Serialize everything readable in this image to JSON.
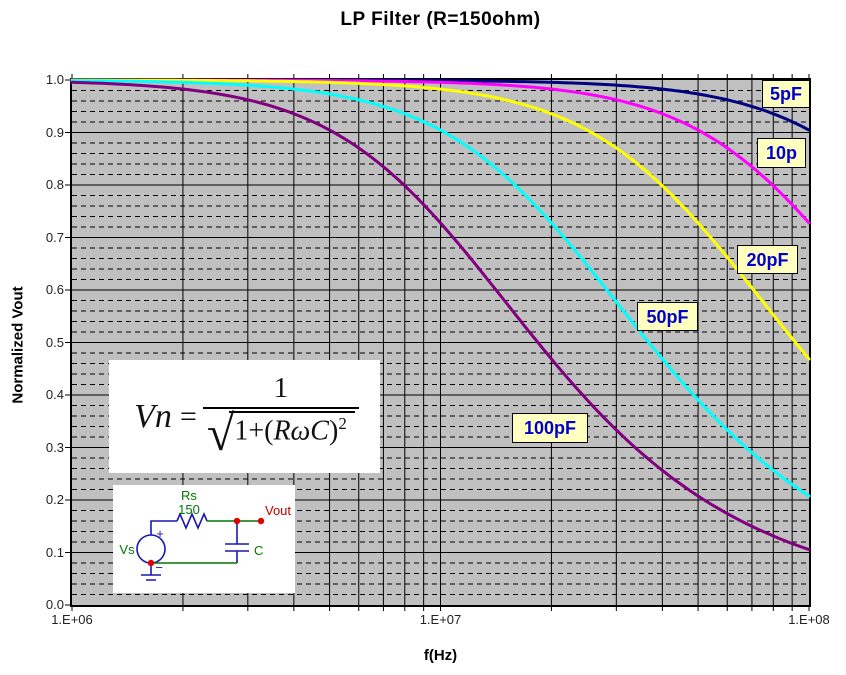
{
  "title": "LP Filter (R=150ohm)",
  "axes": {
    "x": {
      "label": "f(Hz)",
      "scale": "log",
      "tick_labels": [
        "1.E+06",
        "1.E+07",
        "1.E+08"
      ]
    },
    "y": {
      "label": "Normalized Vout",
      "tick_labels": [
        "1.0",
        "0.9",
        "0.8",
        "0.7",
        "0.6",
        "0.5",
        "0.4",
        "0.3",
        "0.2",
        "0.1",
        "0.0"
      ]
    }
  },
  "chart_data": {
    "type": "line",
    "title": "LP Filter (R=150ohm)",
    "xlabel": "f(Hz)",
    "ylabel": "Normalized Vout",
    "x_scale": "log",
    "xlim": [
      1000000,
      100000000
    ],
    "ylim": [
      0,
      1
    ],
    "y_major_step": 0.1,
    "y_minor_step": 0.02,
    "grid": "on",
    "plot_bg": "#C0C0C0",
    "formula": "Vn = 1/sqrt(1+(2*pi*f*R*C)^2)",
    "R_ohm": 150,
    "x_hz": [
      1000000,
      1258925,
      1584893,
      1995262,
      2511886,
      3162278,
      3981072,
      5011872,
      6309573,
      7943282,
      10000000,
      12589254,
      15848932,
      19952623,
      25118864,
      31622777,
      39810717,
      50118723,
      63095734,
      79432823,
      100000000
    ],
    "series": [
      {
        "name": "5pF",
        "label": "5pF",
        "C_farad": 5e-12,
        "color": "#000080",
        "values": [
          1.0,
          1.0,
          1.0,
          1.0,
          0.9999,
          0.9999,
          0.9998,
          0.9997,
          0.9996,
          0.9993,
          0.9989,
          0.9982,
          0.9972,
          0.9956,
          0.9931,
          0.989,
          0.9828,
          0.9732,
          0.9585,
          0.9365,
          0.9046
        ]
      },
      {
        "name": "10pF",
        "label": "10p",
        "C_farad": 1e-11,
        "color": "#FF00FF",
        "values": [
          1.0,
          0.9999,
          0.9999,
          0.9998,
          0.9997,
          0.9996,
          0.9993,
          0.9989,
          0.9982,
          0.9972,
          0.9956,
          0.993,
          0.989,
          0.9827,
          0.9731,
          0.9583,
          0.9362,
          0.9042,
          0.8595,
          0.8005,
          0.7277
        ]
      },
      {
        "name": "20pF",
        "label": "20pF",
        "C_farad": 2e-11,
        "color": "#FFFF00",
        "values": [
          0.9998,
          0.9997,
          0.9996,
          0.9993,
          0.9989,
          0.9982,
          0.9972,
          0.9956,
          0.993,
          0.9889,
          0.9826,
          0.9729,
          0.9581,
          0.936,
          0.9038,
          0.8589,
          0.7998,
          0.727,
          0.6436,
          0.5554,
          0.4687
        ]
      },
      {
        "name": "50pF",
        "label": "50pF",
        "C_farad": 5e-11,
        "color": "#00FFFF",
        "values": [
          0.9989,
          0.9982,
          0.9972,
          0.9956,
          0.9931,
          0.989,
          0.9828,
          0.9732,
          0.9585,
          0.9365,
          0.9046,
          0.8601,
          0.8012,
          0.7286,
          0.6453,
          0.5572,
          0.4704,
          0.3899,
          0.3188,
          0.2581,
          0.2076
        ]
      },
      {
        "name": "100pF",
        "label": "100pF",
        "C_farad": 1e-10,
        "color": "#800080",
        "values": [
          0.9956,
          0.993,
          0.989,
          0.9827,
          0.9731,
          0.9583,
          0.9362,
          0.9042,
          0.8595,
          0.8005,
          0.7277,
          0.6444,
          0.5563,
          0.4695,
          0.3891,
          0.3181,
          0.2575,
          0.2071,
          0.1658,
          0.1324,
          0.1055
        ]
      }
    ],
    "legend_position": "curve-labels-inline"
  },
  "equation": {
    "lhs": "Vn",
    "equals": "=",
    "numerator": "1",
    "radicand_prefix": "1+(",
    "radicand_vars": "RωC",
    "radicand_suffix": ")",
    "exponent": "2"
  },
  "circuit": {
    "vs_label": "Vs",
    "plus": "+",
    "minus": "−",
    "rs_label": "Rs",
    "rs_value": "150",
    "vout_label": "Vout",
    "c_label": "C"
  },
  "colors": {
    "plot_bg": "#C0C0C0",
    "grid_line": "#000000",
    "label_box_bg": "#FFFFC0",
    "label_box_border": "#000000",
    "label_box_text": "#0000CC",
    "axis_text": "#222222",
    "circuit_wire_blue": "#1818B0",
    "circuit_wire_green": "#007A00",
    "circuit_node_red": "#E00000",
    "circuit_vout_text": "#C00000"
  }
}
